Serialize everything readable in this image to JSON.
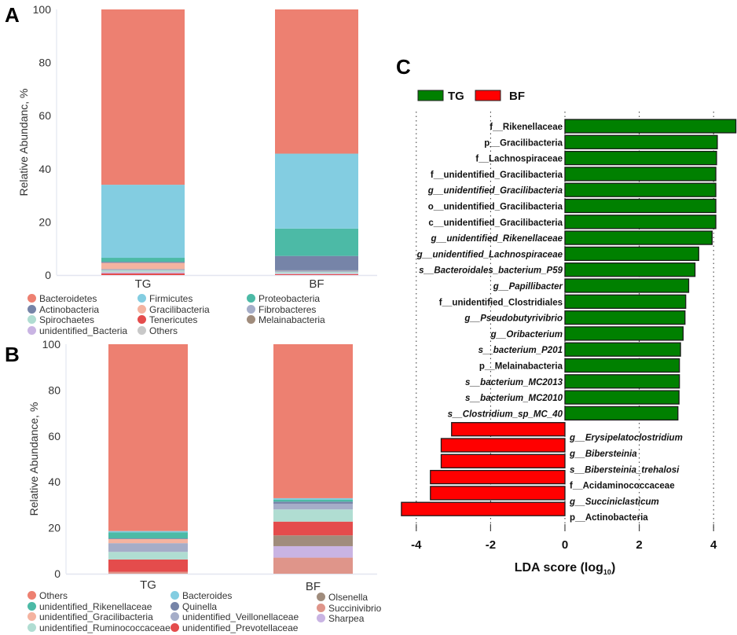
{
  "panels": {
    "A": "A",
    "B": "B",
    "C": "C"
  },
  "chart_data": [
    {
      "id": "A",
      "type": "bar",
      "stacked": true,
      "title": "",
      "xlabel": "",
      "ylabel": "Relative Abundanc, %",
      "ylim": [
        0,
        100
      ],
      "yticks": [
        "0",
        "20",
        "40",
        "60",
        "80",
        "100"
      ],
      "categories": [
        "TG",
        "BF"
      ],
      "series": [
        {
          "name": "Tenericutes",
          "color": "#e44c4c",
          "values": [
            0.6,
            0.3
          ]
        },
        {
          "name": "unidentified_Bacteria",
          "color": "#c9b4e3",
          "values": [
            0.4,
            0.2
          ]
        },
        {
          "name": "Others",
          "color": "#c8c8c8",
          "values": [
            0.3,
            0.3
          ]
        },
        {
          "name": "Spirochaetes",
          "color": "#b0ddd2",
          "values": [
            0.5,
            0.4
          ]
        },
        {
          "name": "Fibrobacteres",
          "color": "#a5adc8",
          "values": [
            0.4,
            0.5
          ]
        },
        {
          "name": "Melainabacteria",
          "color": "#a08c7c",
          "values": [
            0.1,
            0.1
          ]
        },
        {
          "name": "Gracilibacteria",
          "color": "#f4b3a0",
          "values": [
            2.3,
            0.0
          ]
        },
        {
          "name": "Actinobacteria",
          "color": "#7684a8",
          "values": [
            0.4,
            5.4
          ]
        },
        {
          "name": "Proteobacteria",
          "color": "#4cbaa6",
          "values": [
            1.5,
            10.3
          ]
        },
        {
          "name": "Firmicutes",
          "color": "#83cde1",
          "values": [
            27.5,
            28.2
          ]
        },
        {
          "name": "Bacteroidetes",
          "color": "#ed8071",
          "values": [
            66.0,
            54.3
          ]
        }
      ],
      "legend": [
        {
          "name": "Bacteroidetes",
          "color": "#ed8071"
        },
        {
          "name": "Firmicutes",
          "color": "#83cde1"
        },
        {
          "name": "Proteobacteria",
          "color": "#4cbaa6"
        },
        {
          "name": "Actinobacteria",
          "color": "#7684a8"
        },
        {
          "name": "Gracilibacteria",
          "color": "#f4b3a0"
        },
        {
          "name": "Fibrobacteres",
          "color": "#a5adc8"
        },
        {
          "name": "Spirochaetes",
          "color": "#b0ddd2"
        },
        {
          "name": "Tenericutes",
          "color": "#e44c4c"
        },
        {
          "name": "Melainabacteria",
          "color": "#a08c7c"
        },
        {
          "name": "unidentified_Bacteria",
          "color": "#c9b4e3"
        },
        {
          "name": "Others",
          "color": "#c8c8c8"
        }
      ],
      "legend_position": "bottom"
    },
    {
      "id": "B",
      "type": "bar",
      "stacked": true,
      "title": "",
      "xlabel": "",
      "ylabel": "Relative Abundance, %",
      "ylim": [
        0,
        100
      ],
      "yticks": [
        "0",
        "20",
        "40",
        "60",
        "80",
        "100"
      ],
      "categories": [
        "TG",
        "BF"
      ],
      "series": [
        {
          "name": "Succinivibrio",
          "color": "#df958a",
          "values": [
            0.8,
            7.0
          ]
        },
        {
          "name": "Sharpea",
          "color": "#c9b4e3",
          "values": [
            0.0,
            5.0
          ]
        },
        {
          "name": "Olsenella",
          "color": "#a08c7c",
          "values": [
            0.0,
            4.7
          ]
        },
        {
          "name": "unidentified_Prevotellaceae",
          "color": "#e44c4c",
          "values": [
            5.4,
            6.0
          ]
        },
        {
          "name": "unidentified_Ruminococcaceae",
          "color": "#b0ddd2",
          "values": [
            3.3,
            5.3
          ]
        },
        {
          "name": "unidentified_Veillonellaceae",
          "color": "#a5adc8",
          "values": [
            3.8,
            2.5
          ]
        },
        {
          "name": "unidentified_Gracilibacteria",
          "color": "#f4b3a0",
          "values": [
            1.8,
            0.0
          ]
        },
        {
          "name": "Quinella",
          "color": "#7684a8",
          "values": [
            0.3,
            0.9
          ]
        },
        {
          "name": "unidentified_Rikenellaceae",
          "color": "#4cbaa6",
          "values": [
            2.6,
            0.9
          ]
        },
        {
          "name": "Bacteroides",
          "color": "#83cde1",
          "values": [
            0.6,
            0.6
          ]
        },
        {
          "name": "Others",
          "color": "#ed8071",
          "values": [
            81.4,
            67.1
          ]
        }
      ],
      "legend": [
        {
          "name": "Others",
          "color": "#ed8071"
        },
        {
          "name": "unidentified_Rikenellaceae",
          "color": "#4cbaa6"
        },
        {
          "name": "unidentified_Gracilibacteria",
          "color": "#f4b3a0"
        },
        {
          "name": "unidentified_Ruminococcaceae",
          "color": "#b0ddd2"
        },
        {
          "name": "Bacteroides",
          "color": "#83cde1"
        },
        {
          "name": "Quinella",
          "color": "#7684a8"
        },
        {
          "name": "unidentified_Veillonellaceae",
          "color": "#a5adc8"
        },
        {
          "name": "unidentified_Prevotellaceae",
          "color": "#e44c4c"
        },
        {
          "name": "Olsenella",
          "color": "#a08c7c"
        },
        {
          "name": "Succinivibrio",
          "color": "#df958a"
        },
        {
          "name": "Sharpea",
          "color": "#c9b4e3"
        }
      ],
      "legend_position": "bottom"
    },
    {
      "id": "C",
      "type": "bar",
      "orientation": "horizontal",
      "title": "",
      "xlabel": "LDA score (log",
      "xlabel_sub": "10",
      "xlabel_close": ")",
      "xlim": [
        -4.5,
        4.7
      ],
      "xticks": [
        "-4",
        "-2",
        "0",
        "2",
        "4"
      ],
      "xtick_values": [
        -4,
        -2,
        0,
        2,
        4
      ],
      "grid": true,
      "legend": [
        {
          "name": "TG",
          "color": "#008000"
        },
        {
          "name": "BF",
          "color": "#ff0000"
        }
      ],
      "legend_position": "top-left",
      "bars": [
        {
          "label": "f__Rikenellaceae",
          "italic": false,
          "value": 4.6,
          "group": "TG"
        },
        {
          "label": "p__Gracilibacteria",
          "italic": false,
          "value": 4.1,
          "group": "TG"
        },
        {
          "label": "f__Lachnospiraceae",
          "italic": false,
          "value": 4.08,
          "group": "TG"
        },
        {
          "label": "f__unidentified_Gracilibacteria",
          "italic": false,
          "value": 4.06,
          "group": "TG"
        },
        {
          "label": "g__unidentified_Gracilibacteria",
          "italic": true,
          "value": 4.06,
          "group": "TG"
        },
        {
          "label": "o__unidentified_Gracilibacteria",
          "italic": false,
          "value": 4.06,
          "group": "TG"
        },
        {
          "label": "c__unidentified_Gracilibacteria",
          "italic": false,
          "value": 4.06,
          "group": "TG"
        },
        {
          "label": "g__unidentified_Rikenellaceae",
          "italic": true,
          "value": 3.96,
          "group": "TG"
        },
        {
          "label": "g__unidentified_Lachnospiraceae",
          "italic": true,
          "value": 3.6,
          "group": "TG"
        },
        {
          "label": "s__Bacteroidales_bacterium_P59",
          "italic": true,
          "value": 3.5,
          "group": "TG"
        },
        {
          "label": "g__Papillibacter",
          "italic": true,
          "value": 3.33,
          "group": "TG"
        },
        {
          "label": "f__unidentified_Clostridiales",
          "italic": false,
          "value": 3.25,
          "group": "TG"
        },
        {
          "label": "g__Pseudobutyrivibrio",
          "italic": true,
          "value": 3.23,
          "group": "TG"
        },
        {
          "label": "g__Oribacterium",
          "italic": true,
          "value": 3.18,
          "group": "TG"
        },
        {
          "label": "s__bacterium_P201",
          "italic": true,
          "value": 3.11,
          "group": "TG"
        },
        {
          "label": "p__Melainabacteria",
          "italic": false,
          "value": 3.08,
          "group": "TG"
        },
        {
          "label": "s__bacterium_MC2013",
          "italic": true,
          "value": 3.08,
          "group": "TG"
        },
        {
          "label": "s__bacterium_MC2010",
          "italic": true,
          "value": 3.07,
          "group": "TG"
        },
        {
          "label": "s__Clostridium_sp_MC_40",
          "italic": true,
          "value": 3.04,
          "group": "TG"
        },
        {
          "label": "g__Erysipelatoclostridium",
          "italic": true,
          "value": -3.05,
          "group": "BF"
        },
        {
          "label": "g__Bibersteinia",
          "italic": true,
          "value": -3.33,
          "group": "BF"
        },
        {
          "label": "s__Bibersteinia_trehalosi",
          "italic": true,
          "value": -3.33,
          "group": "BF"
        },
        {
          "label": "f__Acidaminococcaceae",
          "italic": false,
          "value": -3.62,
          "group": "BF"
        },
        {
          "label": "g__Succiniclasticum",
          "italic": true,
          "value": -3.62,
          "group": "BF"
        },
        {
          "label": "p__Actinobacteria",
          "italic": false,
          "value": -4.4,
          "group": "BF"
        }
      ]
    }
  ]
}
